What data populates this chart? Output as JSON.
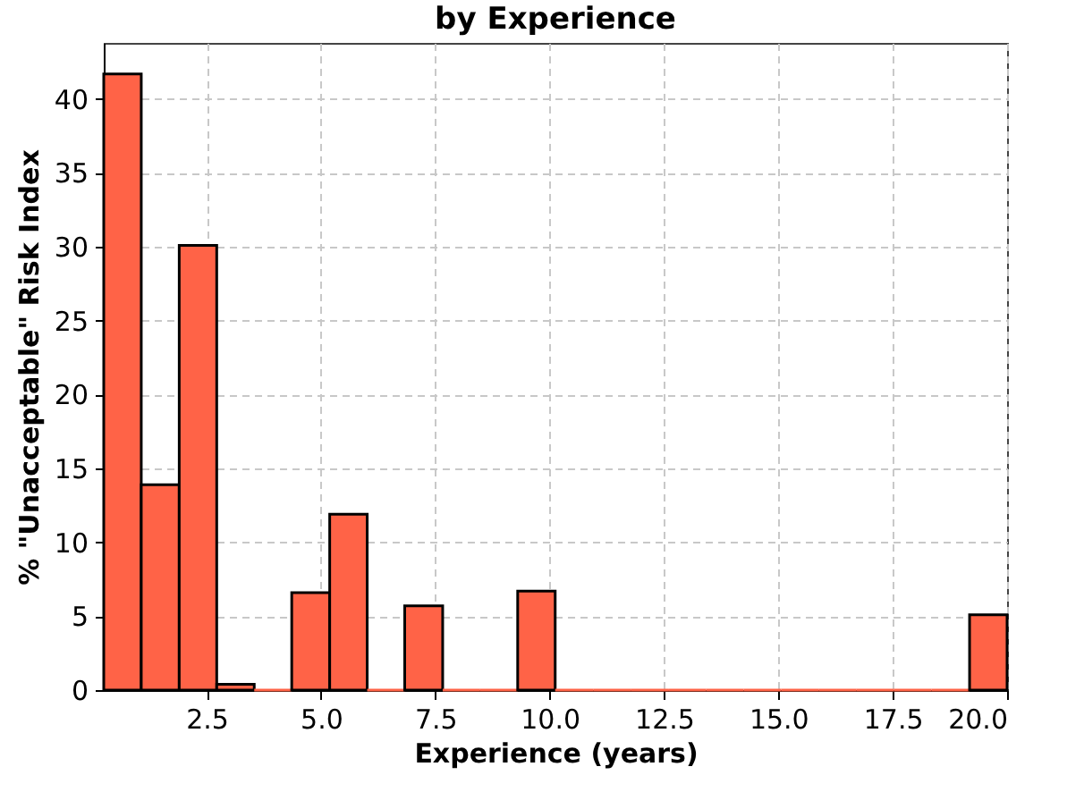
{
  "chart_data": {
    "type": "histogram",
    "title": "by Experience",
    "xlabel": "Experience (years)",
    "ylabel": "% \"Unacceptable\" Risk Index",
    "bins": [
      0.25,
      1.07,
      1.9,
      2.72,
      3.54,
      4.36,
      5.19,
      6.01,
      6.83,
      7.66,
      8.48,
      9.3,
      10.12,
      10.95,
      11.77,
      12.59,
      13.42,
      14.24,
      15.06,
      15.89,
      16.71,
      17.53,
      18.35,
      19.18,
      20.0
    ],
    "values": [
      41.7,
      13.9,
      30.1,
      0.4,
      0,
      6.6,
      11.9,
      0,
      5.7,
      0,
      0,
      6.7,
      0,
      0,
      0,
      0,
      0,
      0,
      0,
      0,
      0,
      0,
      0,
      5.1
    ],
    "color": "#ff6347",
    "xlim": [
      0.25,
      20
    ],
    "ylim": [
      0,
      43.8
    ],
    "xticks": [
      {
        "value": 2.5,
        "label": "2.5"
      },
      {
        "value": 5,
        "label": "5.0"
      },
      {
        "value": 7.5,
        "label": "7.5"
      },
      {
        "value": 10,
        "label": "10.0"
      },
      {
        "value": 12.5,
        "label": "12.5"
      },
      {
        "value": 15,
        "label": "15.0"
      },
      {
        "value": 17.5,
        "label": "17.5"
      },
      {
        "value": 20,
        "label": "20.0"
      }
    ],
    "yticks": [
      0,
      5,
      10,
      15,
      20,
      25,
      30,
      35,
      40
    ],
    "grid": true
  }
}
